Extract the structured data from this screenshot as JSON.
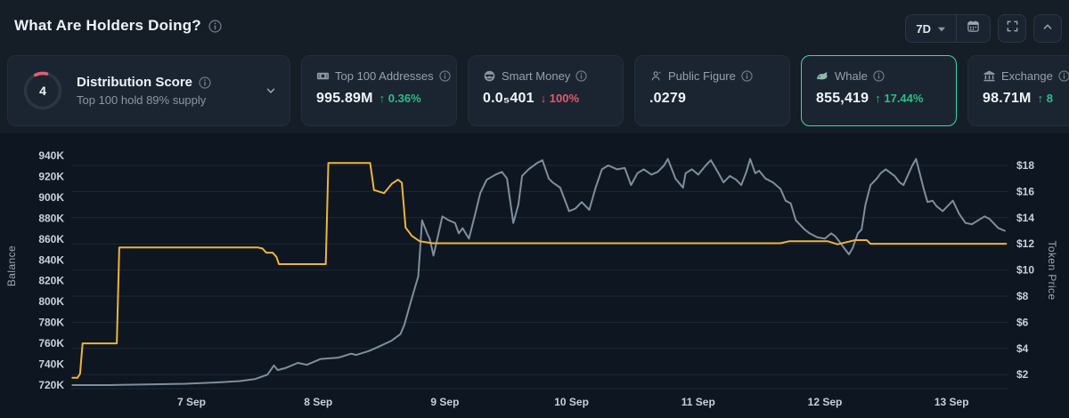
{
  "header": {
    "title": "What Are Holders Doing?",
    "timeframe_label": "7D"
  },
  "cards": {
    "distribution": {
      "score": "4",
      "title": "Distribution Score",
      "subtitle": "Top 100 hold 89% supply"
    },
    "top100": {
      "label": "Top 100 Addresses",
      "value": "995.89M",
      "change": "↑ 0.36%",
      "kind": "up"
    },
    "smart_money": {
      "label": "Smart Money",
      "value": "0.0₅401",
      "change": "↓ 100%",
      "kind": "down"
    },
    "public_figure": {
      "label": "Public Figure",
      "value": ".0279",
      "change": "",
      "kind": "none"
    },
    "whale": {
      "label": "Whale",
      "value": "855,419",
      "change": "↑ 17.44%",
      "kind": "up",
      "selected": true
    },
    "exchange": {
      "label": "Exchange",
      "value": "98.71M",
      "change": "↑ 8",
      "kind": "up"
    }
  },
  "colors": {
    "up": "#2ebd85",
    "down": "#e25a6a",
    "selected_border": "#3fd6a6",
    "balance_line": "#ecb53d",
    "price_line": "#7f8e9d",
    "grid": "#1d2836"
  },
  "chart_data": {
    "type": "line",
    "x_axis": {
      "unit": "date",
      "ticks": [
        {
          "day": 7,
          "label": "7 Sep"
        },
        {
          "day": 8,
          "label": "8 Sep"
        },
        {
          "day": 9,
          "label": "9 Sep"
        },
        {
          "day": 10,
          "label": "10 Sep"
        },
        {
          "day": 11,
          "label": "11 Sep"
        },
        {
          "day": 12,
          "label": "12 Sep"
        },
        {
          "day": 13,
          "label": "13 Sep"
        }
      ]
    },
    "left_axis": {
      "label": "Balance",
      "unit": "K",
      "min": 720,
      "max": 940,
      "tick_values": [
        940,
        920,
        900,
        880,
        860,
        840,
        820,
        800,
        780,
        760,
        740,
        720
      ],
      "tick_labels": [
        "940K",
        "920K",
        "900K",
        "880K",
        "860K",
        "840K",
        "820K",
        "800K",
        "780K",
        "760K",
        "740K",
        "720K"
      ]
    },
    "right_axis": {
      "label": "Token Price",
      "unit": "$",
      "min": 2,
      "max": 18,
      "tick_values": [
        18,
        16,
        14,
        12,
        10,
        8,
        6,
        4,
        2
      ],
      "tick_labels": [
        "$18",
        "$16",
        "$14",
        "$12",
        "$10",
        "$8",
        "$6",
        "$4",
        "$2"
      ]
    },
    "series": [
      {
        "name": "Whale Balance",
        "axis": "left",
        "color": "#ecb53d",
        "points": [
          [
            6.06,
            727
          ],
          [
            6.1,
            727
          ],
          [
            6.12,
            731
          ],
          [
            6.14,
            760
          ],
          [
            6.41,
            760
          ],
          [
            6.43,
            852
          ],
          [
            7.52,
            852
          ],
          [
            7.56,
            851
          ],
          [
            7.59,
            847
          ],
          [
            7.64,
            847
          ],
          [
            7.67,
            843
          ],
          [
            7.69,
            836
          ],
          [
            8.06,
            836
          ],
          [
            8.08,
            933
          ],
          [
            8.41,
            933
          ],
          [
            8.44,
            907
          ],
          [
            8.52,
            904
          ],
          [
            8.58,
            913
          ],
          [
            8.63,
            917
          ],
          [
            8.66,
            914
          ],
          [
            8.69,
            871
          ],
          [
            8.74,
            863
          ],
          [
            8.8,
            858
          ],
          [
            8.9,
            856
          ],
          [
            9.5,
            856
          ],
          [
            10.5,
            856
          ],
          [
            11.65,
            856
          ],
          [
            11.72,
            858
          ],
          [
            12.02,
            858
          ],
          [
            12.06,
            856.5
          ],
          [
            12.1,
            855
          ],
          [
            12.17,
            857
          ],
          [
            12.24,
            859
          ],
          [
            12.33,
            859
          ],
          [
            12.36,
            855.5
          ],
          [
            12.8,
            855.5
          ],
          [
            13.43,
            855.5
          ]
        ]
      },
      {
        "name": "Token Price",
        "axis": "right",
        "color": "#7f8e9d",
        "points": [
          [
            6.06,
            1.2
          ],
          [
            6.35,
            1.2
          ],
          [
            6.65,
            1.25
          ],
          [
            6.95,
            1.3
          ],
          [
            7.2,
            1.4
          ],
          [
            7.38,
            1.5
          ],
          [
            7.5,
            1.65
          ],
          [
            7.6,
            2.0
          ],
          [
            7.65,
            2.7
          ],
          [
            7.68,
            2.35
          ],
          [
            7.74,
            2.5
          ],
          [
            7.84,
            2.9
          ],
          [
            7.91,
            2.75
          ],
          [
            8.02,
            3.2
          ],
          [
            8.16,
            3.3
          ],
          [
            8.26,
            3.6
          ],
          [
            8.3,
            3.5
          ],
          [
            8.4,
            3.8
          ],
          [
            8.47,
            4.1
          ],
          [
            8.58,
            4.6
          ],
          [
            8.65,
            5.1
          ],
          [
            8.68,
            5.8
          ],
          [
            8.72,
            7.2
          ],
          [
            8.75,
            8.2
          ],
          [
            8.79,
            9.5
          ],
          [
            8.82,
            13.8
          ],
          [
            8.86,
            12.8
          ],
          [
            8.88,
            12.4
          ],
          [
            8.91,
            11.1
          ],
          [
            8.95,
            12.8
          ],
          [
            8.98,
            14.1
          ],
          [
            9.03,
            13.8
          ],
          [
            9.08,
            13.6
          ],
          [
            9.11,
            12.8
          ],
          [
            9.14,
            13.2
          ],
          [
            9.19,
            12.4
          ],
          [
            9.24,
            14.3
          ],
          [
            9.28,
            15.9
          ],
          [
            9.33,
            16.9
          ],
          [
            9.4,
            17.3
          ],
          [
            9.45,
            17.5
          ],
          [
            9.49,
            17.0
          ],
          [
            9.54,
            13.6
          ],
          [
            9.58,
            15.0
          ],
          [
            9.61,
            17.2
          ],
          [
            9.66,
            17.7
          ],
          [
            9.73,
            18.2
          ],
          [
            9.77,
            18.4
          ],
          [
            9.82,
            17.0
          ],
          [
            9.85,
            16.7
          ],
          [
            9.91,
            16.3
          ],
          [
            9.98,
            14.5
          ],
          [
            10.03,
            14.7
          ],
          [
            10.08,
            15.2
          ],
          [
            10.14,
            14.6
          ],
          [
            10.19,
            16.3
          ],
          [
            10.24,
            17.7
          ],
          [
            10.29,
            18.0
          ],
          [
            10.36,
            17.7
          ],
          [
            10.42,
            17.8
          ],
          [
            10.47,
            16.5
          ],
          [
            10.52,
            17.4
          ],
          [
            10.57,
            17.7
          ],
          [
            10.63,
            17.3
          ],
          [
            10.68,
            17.5
          ],
          [
            10.73,
            18.0
          ],
          [
            10.76,
            18.5
          ],
          [
            10.82,
            17.0
          ],
          [
            10.88,
            16.3
          ],
          [
            10.9,
            17.4
          ],
          [
            10.95,
            17.7
          ],
          [
            11.0,
            17.3
          ],
          [
            11.06,
            18.0
          ],
          [
            11.1,
            18.4
          ],
          [
            11.16,
            17.4
          ],
          [
            11.2,
            16.7
          ],
          [
            11.25,
            17.2
          ],
          [
            11.3,
            16.9
          ],
          [
            11.34,
            16.5
          ],
          [
            11.38,
            17.5
          ],
          [
            11.41,
            18.5
          ],
          [
            11.45,
            17.4
          ],
          [
            11.48,
            17.6
          ],
          [
            11.53,
            17.0
          ],
          [
            11.59,
            16.7
          ],
          [
            11.65,
            16.2
          ],
          [
            11.69,
            15.3
          ],
          [
            11.73,
            15.1
          ],
          [
            11.77,
            13.8
          ],
          [
            11.84,
            13.1
          ],
          [
            11.88,
            12.8
          ],
          [
            11.94,
            12.5
          ],
          [
            12.0,
            12.4
          ],
          [
            12.05,
            12.8
          ],
          [
            12.08,
            12.6
          ],
          [
            12.12,
            12.1
          ],
          [
            12.15,
            11.7
          ],
          [
            12.19,
            11.2
          ],
          [
            12.22,
            11.7
          ],
          [
            12.26,
            12.8
          ],
          [
            12.29,
            13.1
          ],
          [
            12.32,
            15.0
          ],
          [
            12.36,
            16.5
          ],
          [
            12.41,
            17.0
          ],
          [
            12.44,
            17.4
          ],
          [
            12.48,
            17.7
          ],
          [
            12.55,
            17.2
          ],
          [
            12.59,
            16.7
          ],
          [
            12.62,
            16.5
          ],
          [
            12.69,
            18.0
          ],
          [
            12.72,
            18.5
          ],
          [
            12.78,
            16.2
          ],
          [
            12.81,
            15.2
          ],
          [
            12.85,
            15.3
          ],
          [
            12.88,
            14.9
          ],
          [
            12.93,
            14.5
          ],
          [
            13.01,
            15.3
          ],
          [
            13.06,
            14.3
          ],
          [
            13.11,
            13.6
          ],
          [
            13.16,
            13.5
          ],
          [
            13.21,
            13.8
          ],
          [
            13.26,
            14.1
          ],
          [
            13.3,
            13.9
          ],
          [
            13.37,
            13.2
          ],
          [
            13.42,
            13.0
          ]
        ]
      }
    ]
  }
}
